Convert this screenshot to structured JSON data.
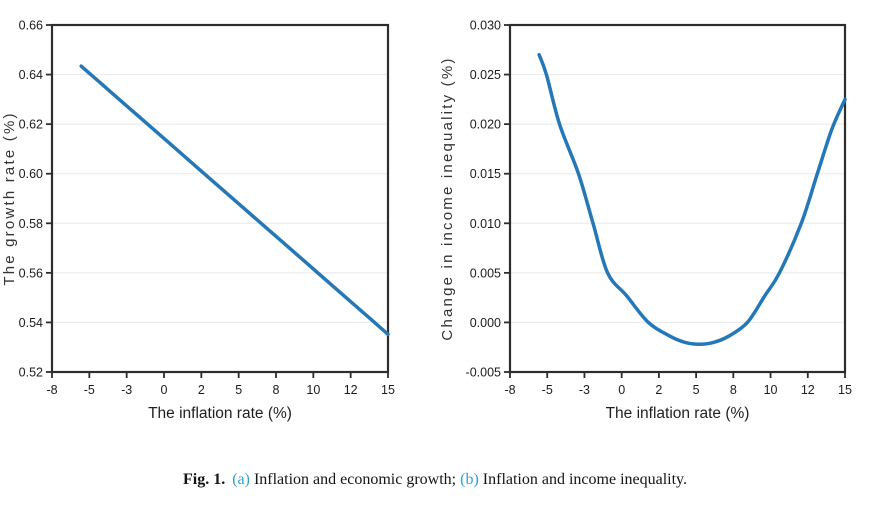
{
  "caption": {
    "fig_label": "Fig. 1.",
    "part_a_label": "(a)",
    "part_a_text": "Inflation and economic growth;",
    "part_b_label": "(b)",
    "part_b_text": "Inflation and income inequality.",
    "accent_color": "#2f9fd4"
  },
  "style_colors": {
    "line": "#2478b7",
    "spine": "#2d2d2d",
    "grid": "#ebebeb",
    "tick": "#2d2d2d"
  },
  "chart_data": [
    {
      "type": "line",
      "panel": "a",
      "title": "",
      "xlabel": "The inflation rate (%)",
      "ylabel": "The growth rate (%)",
      "xlim": [
        -8,
        15
      ],
      "ylim": [
        0.52,
        0.66
      ],
      "x_tick_labels": [
        "-8",
        "-5",
        "-3",
        "0",
        "2",
        "5",
        "8",
        "10",
        "12",
        "15"
      ],
      "y_tick_labels": [
        "0.52",
        "0.54",
        "0.56",
        "0.58",
        "0.60",
        "0.62",
        "0.64",
        "0.66"
      ],
      "grid": "horizontal",
      "legend": "none",
      "series": [
        {
          "x": [
            -6,
            -4,
            -2,
            0,
            2,
            4,
            6,
            8,
            10,
            12,
            14,
            15
          ],
          "y": [
            0.6434,
            0.6331,
            0.6228,
            0.6125,
            0.6022,
            0.5919,
            0.5816,
            0.5713,
            0.561,
            0.5507,
            0.5404,
            0.5352
          ]
        }
      ]
    },
    {
      "type": "line",
      "panel": "b",
      "title": "",
      "xlabel": "The inflation rate (%)",
      "ylabel": "Change in income inequality (%)",
      "xlim": [
        -8,
        15
      ],
      "ylim": [
        -0.005,
        0.03
      ],
      "x_tick_labels": [
        "-8",
        "-5",
        "-3",
        "0",
        "2",
        "5",
        "8",
        "10",
        "12",
        "15"
      ],
      "y_tick_labels": [
        "-0.005",
        "0.000",
        "0.005",
        "0.010",
        "0.015",
        "0.020",
        "0.025",
        "0.030"
      ],
      "grid": "horizontal",
      "legend": "none",
      "series": [
        {
          "x": [
            -6,
            -5.5,
            -4.6,
            -3.3,
            -2.3,
            -1.3,
            0,
            1.5,
            3,
            4,
            5,
            6,
            7,
            8.3,
            9.5,
            10.5,
            12,
            13.1,
            14.1,
            15
          ],
          "y": [
            0.027,
            0.025,
            0.02,
            0.015,
            0.01,
            0.005,
            0.0027,
            0.0,
            -0.0014,
            -0.002,
            -0.0022,
            -0.002,
            -0.0014,
            0.0,
            0.0027,
            0.005,
            0.01,
            0.015,
            0.0195,
            0.0225
          ]
        }
      ]
    }
  ]
}
